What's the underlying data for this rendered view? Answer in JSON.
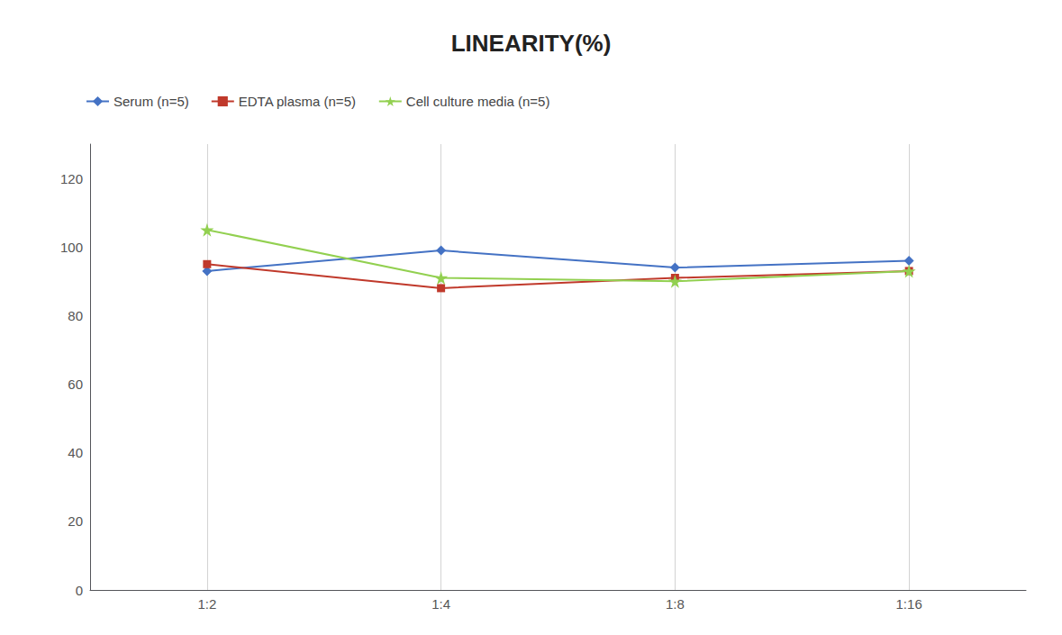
{
  "chart_data": {
    "type": "line",
    "title": "LINEARITY(%)",
    "categories": [
      "1:2",
      "1:4",
      "1:8",
      "1:16"
    ],
    "series": [
      {
        "name": "Serum (n=5)",
        "color": "#4472C4",
        "marker": "diamond",
        "values": [
          93,
          99,
          94,
          96
        ]
      },
      {
        "name": "EDTA plasma (n=5)",
        "color": "#C0392B",
        "marker": "square",
        "values": [
          95,
          88,
          91,
          93
        ]
      },
      {
        "name": "Cell culture media (n=5)",
        "color": "#92D050",
        "marker": "star",
        "values": [
          105,
          91,
          90,
          93
        ]
      }
    ],
    "ylim": [
      0,
      130
    ],
    "yticks": [
      0,
      20,
      40,
      60,
      80,
      100,
      120
    ],
    "grid": "x",
    "legend": "upper left"
  }
}
